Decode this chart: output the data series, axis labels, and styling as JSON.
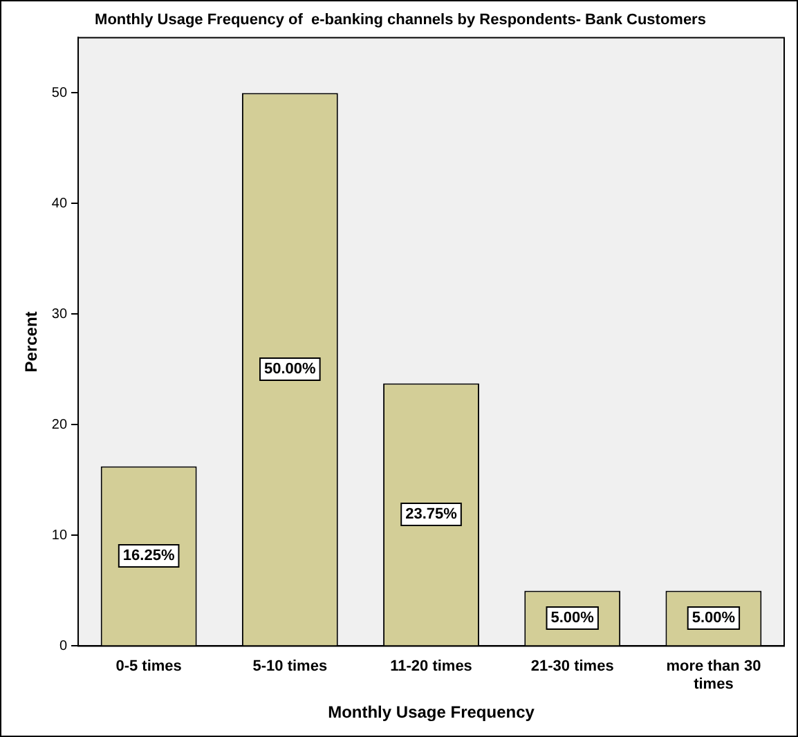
{
  "chart_data": {
    "type": "bar",
    "title": "Monthly Usage Frequency of  e-banking channels by Respondents- Bank Customers",
    "xlabel": "Monthly Usage Frequency",
    "ylabel": "Percent",
    "categories": [
      "0-5 times",
      "5-10 times",
      "11-20 times",
      "21-30 times",
      "more than 30 times"
    ],
    "values": [
      16.25,
      50,
      23.75,
      5,
      5
    ],
    "color": "#d3ce97",
    "value_labels": [
      "16.25%",
      "50.00%",
      "23.75%",
      "5.00%",
      "5.00%"
    ],
    "ylim": [
      0,
      55
    ],
    "yticks": [
      0,
      10,
      20,
      30,
      40,
      50
    ],
    "grid": false,
    "legend": false
  }
}
